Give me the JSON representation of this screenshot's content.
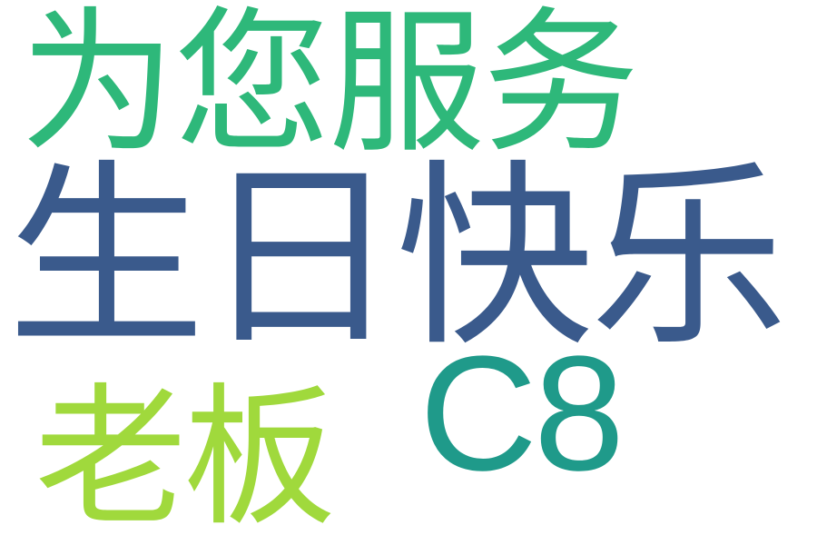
{
  "words": {
    "service": {
      "text": "为您服务",
      "color": "#2eb87a"
    },
    "birthday": {
      "text": "生日快乐",
      "color": "#3a5a8c"
    },
    "boss": {
      "text": "老板",
      "color": "#a0d93c"
    },
    "c8": {
      "text": "C8",
      "color": "#1f9a8a"
    }
  }
}
